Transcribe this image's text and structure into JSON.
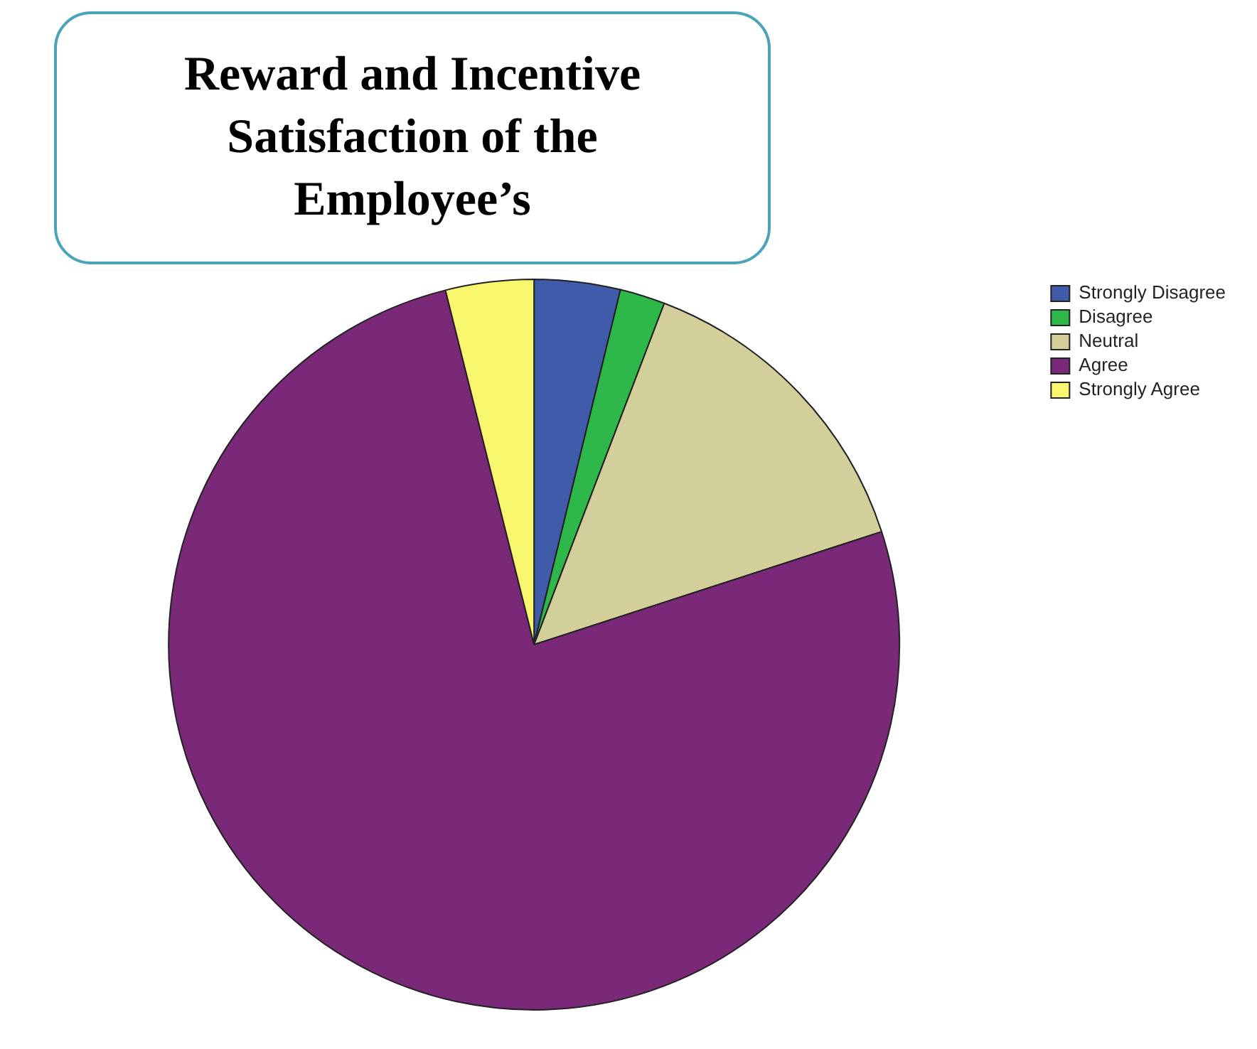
{
  "chart_data": {
    "type": "pie",
    "title": "Reward and Incentive Satisfaction of the Employee’s",
    "categories": [
      "Strongly Disagree",
      "Disagree",
      "Neutral",
      "Agree",
      "Strongly Agree"
    ],
    "values": [
      3.8,
      2.0,
      14.2,
      76.1,
      3.9
    ],
    "colors": [
      "#3f5ba9",
      "#2fb84a",
      "#d3cf9a",
      "#7a2878",
      "#f8f76e"
    ],
    "legend": "top right"
  }
}
